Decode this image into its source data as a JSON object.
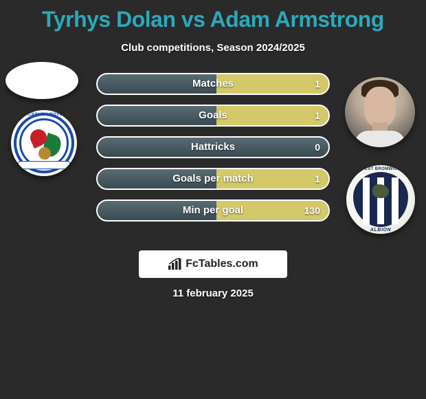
{
  "title": "Tyrhys Dolan vs Adam Armstrong",
  "subtitle": "Club competitions, Season 2024/2025",
  "date": "11 february 2025",
  "footer_brand": "FcTables.com",
  "colors": {
    "accent": "#2da8ba",
    "p1_bar": "#2da8ba",
    "p2_bar": "#d4c968",
    "bar_bg_top": "#5a6b73",
    "bar_bg_bottom": "#3a4a52",
    "page_bg": "#2a2a2a"
  },
  "player1": {
    "name": "Tyrhys Dolan",
    "club": "Blackburn Rovers",
    "crest_text_top": "BLACKBURN ROVERS",
    "crest_motto": "ARTE ET LABORE"
  },
  "player2": {
    "name": "Adam Armstrong",
    "club": "West Bromwich Albion",
    "crest_text_top": "WEST BROMWICH",
    "crest_text_bottom": "ALBION"
  },
  "stats": [
    {
      "label": "Matches",
      "p1": "",
      "p2": "1",
      "p1_pct": 0,
      "p2_pct": 100
    },
    {
      "label": "Goals",
      "p1": "",
      "p2": "1",
      "p1_pct": 0,
      "p2_pct": 100
    },
    {
      "label": "Hattricks",
      "p1": "",
      "p2": "0",
      "p1_pct": 0,
      "p2_pct": 0
    },
    {
      "label": "Goals per match",
      "p1": "",
      "p2": "1",
      "p1_pct": 0,
      "p2_pct": 100
    },
    {
      "label": "Min per goal",
      "p1": "",
      "p2": "130",
      "p1_pct": 0,
      "p2_pct": 100
    }
  ]
}
